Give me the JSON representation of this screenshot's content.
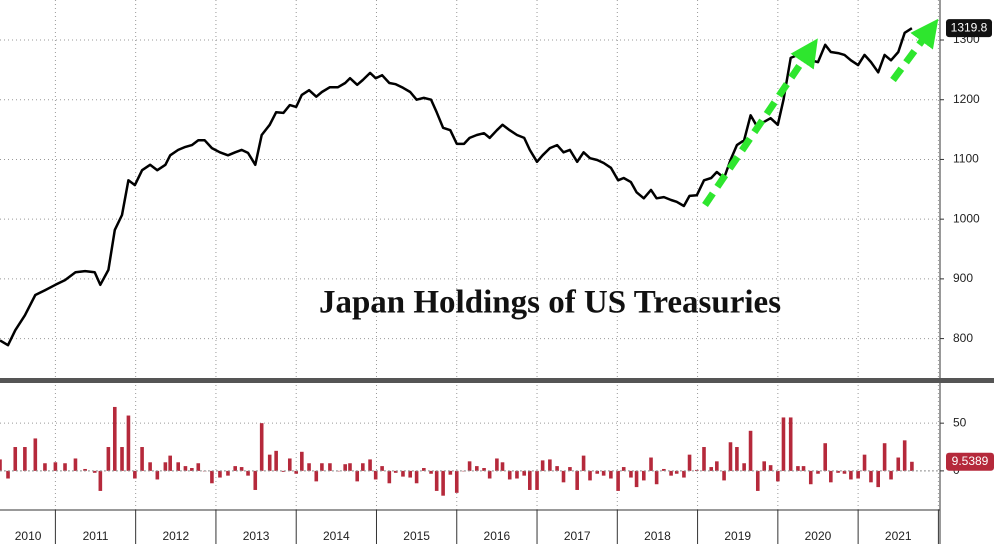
{
  "chart_data": [
    {
      "type": "line",
      "title": "Japan Holdings of US Treasuries",
      "color": "#000000",
      "x": [
        2010.31,
        2010.41,
        2010.5,
        2010.62,
        2010.75,
        2010.87,
        2011.0,
        2011.12,
        2011.25,
        2011.37,
        2011.49,
        2011.56,
        2011.66,
        2011.74,
        2011.83,
        2011.91,
        2011.99,
        2012.08,
        2012.18,
        2012.27,
        2012.37,
        2012.43,
        2012.53,
        2012.62,
        2012.7,
        2012.78,
        2012.86,
        2012.95,
        2013.05,
        2013.15,
        2013.24,
        2013.32,
        2013.4,
        2013.49,
        2013.57,
        2013.67,
        2013.75,
        2013.84,
        2013.92,
        2014.0,
        2014.07,
        2014.16,
        2014.25,
        2014.32,
        2014.42,
        2014.52,
        2014.61,
        2014.67,
        2014.76,
        2014.83,
        2014.92,
        2014.99,
        2015.07,
        2015.16,
        2015.24,
        2015.33,
        2015.42,
        2015.5,
        2015.59,
        2015.68,
        2015.75,
        2015.83,
        2015.92,
        2016.0,
        2016.09,
        2016.16,
        2016.25,
        2016.34,
        2016.41,
        2016.5,
        2016.57,
        2016.66,
        2016.75,
        2016.84,
        2016.91,
        2017.0,
        2017.07,
        2017.16,
        2017.25,
        2017.33,
        2017.41,
        2017.5,
        2017.58,
        2017.66,
        2017.75,
        2017.83,
        2017.92,
        2018.01,
        2018.08,
        2018.17,
        2018.24,
        2018.33,
        2018.42,
        2018.49,
        2018.58,
        2018.67,
        2018.74,
        2018.83,
        2018.9,
        2018.99,
        2019.08,
        2019.17,
        2019.24,
        2019.33,
        2019.41,
        2019.49,
        2019.58,
        2019.66,
        2019.75,
        2019.83,
        2019.91,
        2020.0,
        2020.07,
        2020.16,
        2020.25,
        2020.32,
        2020.41,
        2020.5,
        2020.59,
        2020.66,
        2020.75,
        2020.83,
        2020.91,
        2021.0,
        2021.08,
        2021.16,
        2021.25,
        2021.33,
        2021.41,
        2021.5,
        2021.58,
        2021.67
      ],
      "values": [
        797,
        789,
        814,
        839,
        873,
        881,
        890,
        898,
        911,
        913,
        911,
        890,
        915,
        982,
        1007,
        1065,
        1057,
        1082,
        1091,
        1082,
        1091,
        1107,
        1116,
        1121,
        1124,
        1132,
        1132,
        1119,
        1112,
        1107,
        1112,
        1116,
        1111,
        1091,
        1141,
        1158,
        1179,
        1178,
        1191,
        1188,
        1208,
        1216,
        1205,
        1213,
        1221,
        1221,
        1228,
        1236,
        1225,
        1233,
        1245,
        1236,
        1241,
        1228,
        1226,
        1220,
        1213,
        1200,
        1203,
        1200,
        1179,
        1153,
        1149,
        1126,
        1126,
        1136,
        1141,
        1144,
        1136,
        1149,
        1158,
        1149,
        1141,
        1136,
        1116,
        1096,
        1107,
        1119,
        1124,
        1112,
        1116,
        1096,
        1112,
        1102,
        1099,
        1094,
        1086,
        1065,
        1069,
        1062,
        1045,
        1035,
        1049,
        1035,
        1037,
        1032,
        1029,
        1022,
        1039,
        1040,
        1065,
        1069,
        1079,
        1069,
        1099,
        1124,
        1132,
        1174,
        1153,
        1163,
        1169,
        1158,
        1200,
        1270,
        1275,
        1280,
        1266,
        1263,
        1292,
        1280,
        1278,
        1275,
        1266,
        1258,
        1275,
        1263,
        1246,
        1275,
        1266,
        1280,
        1312,
        1319.8
      ],
      "xlim": [
        2010.31,
        2022.02
      ],
      "ylim": [
        734,
        1367
      ],
      "yticks": [
        800,
        900,
        1000,
        1100,
        1200,
        1300
      ],
      "grid": true
    },
    {
      "type": "bar",
      "color": "#b5293b",
      "x": [
        2010.31,
        2010.41,
        2010.5,
        2010.62,
        2010.75,
        2010.87,
        2011.0,
        2011.12,
        2011.25,
        2011.37,
        2011.49,
        2011.56,
        2011.66,
        2011.74,
        2011.83,
        2011.91,
        2011.99,
        2012.08,
        2012.18,
        2012.27,
        2012.37,
        2012.43,
        2012.53,
        2012.62,
        2012.7,
        2012.78,
        2012.86,
        2012.95,
        2013.05,
        2013.15,
        2013.24,
        2013.32,
        2013.4,
        2013.49,
        2013.57,
        2013.67,
        2013.75,
        2013.84,
        2013.92,
        2014.0,
        2014.07,
        2014.16,
        2014.25,
        2014.32,
        2014.42,
        2014.52,
        2014.61,
        2014.67,
        2014.76,
        2014.83,
        2014.92,
        2014.99,
        2015.07,
        2015.16,
        2015.24,
        2015.33,
        2015.42,
        2015.5,
        2015.59,
        2015.68,
        2015.75,
        2015.83,
        2015.92,
        2016.0,
        2016.09,
        2016.16,
        2016.25,
        2016.34,
        2016.41,
        2016.5,
        2016.57,
        2016.66,
        2016.75,
        2016.84,
        2016.91,
        2017.0,
        2017.07,
        2017.16,
        2017.25,
        2017.33,
        2017.41,
        2017.5,
        2017.58,
        2017.66,
        2017.75,
        2017.83,
        2017.92,
        2018.01,
        2018.08,
        2018.17,
        2018.24,
        2018.33,
        2018.42,
        2018.49,
        2018.58,
        2018.67,
        2018.74,
        2018.83,
        2018.9,
        2018.99,
        2019.08,
        2019.17,
        2019.24,
        2019.33,
        2019.41,
        2019.49,
        2019.58,
        2019.66,
        2019.75,
        2019.83,
        2019.91,
        2020.0,
        2020.07,
        2020.16,
        2020.25,
        2020.32,
        2020.41,
        2020.5,
        2020.59,
        2020.66,
        2020.75,
        2020.83,
        2020.91,
        2021.0,
        2021.08,
        2021.16,
        2021.25,
        2021.33,
        2021.41,
        2021.5,
        2021.58,
        2021.67
      ],
      "values": [
        12,
        -8,
        25,
        25,
        34,
        8,
        9,
        8,
        13,
        2,
        -2,
        -21,
        25,
        67,
        25,
        58,
        -8,
        25,
        9,
        -9,
        9,
        16,
        9,
        5,
        3,
        8,
        0,
        -13,
        -7,
        -5,
        5,
        4,
        -5,
        -20,
        50,
        17,
        21,
        -1,
        13,
        -3,
        20,
        8,
        -11,
        8,
        8,
        0,
        7,
        8,
        -11,
        8,
        12,
        -9,
        5,
        -13,
        -2,
        -6,
        -7,
        -13,
        3,
        -3,
        -21,
        -26,
        -4,
        -23,
        0,
        10,
        5,
        3,
        -8,
        13,
        9,
        -9,
        -8,
        -5,
        -20,
        -20,
        11,
        12,
        5,
        -12,
        4,
        -20,
        16,
        -10,
        -3,
        -5,
        -8,
        -21,
        4,
        -7,
        -17,
        -10,
        14,
        -14,
        2,
        -5,
        -3,
        -7,
        17,
        1,
        25,
        4,
        10,
        -10,
        30,
        25,
        8,
        42,
        -21,
        10,
        6,
        -11,
        56,
        56,
        5,
        5,
        -14,
        -3,
        29,
        -12,
        -2,
        -3,
        -9,
        -8,
        17,
        -12,
        -17,
        29,
        -9,
        14,
        32,
        9.5389
      ],
      "xlim": [
        2010.31,
        2022.02
      ],
      "ylim": [
        -41,
        90
      ],
      "yticks": [
        0,
        50
      ],
      "xticks": [
        {
          "value": 2010.66,
          "label": "2010"
        },
        {
          "value": 2011.5,
          "label": "2011"
        },
        {
          "value": 2012.5,
          "label": "2012"
        },
        {
          "value": 2013.5,
          "label": "2013"
        },
        {
          "value": 2014.5,
          "label": "2014"
        },
        {
          "value": 2015.5,
          "label": "2015"
        },
        {
          "value": 2016.5,
          "label": "2016"
        },
        {
          "value": 2017.5,
          "label": "2017"
        },
        {
          "value": 2018.5,
          "label": "2018"
        },
        {
          "value": 2019.5,
          "label": "2019"
        },
        {
          "value": 2020.5,
          "label": "2020"
        },
        {
          "value": 2021.5,
          "label": "2021"
        }
      ],
      "grid": true
    }
  ]
}
